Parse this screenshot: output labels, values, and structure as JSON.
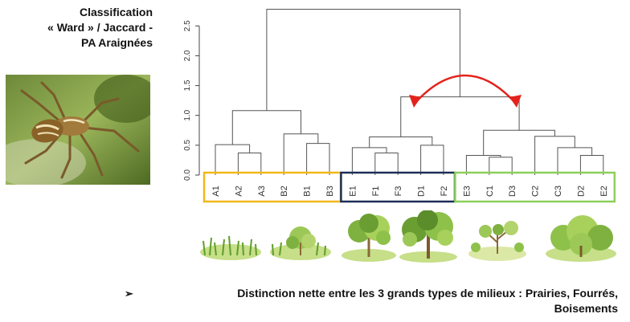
{
  "title": {
    "line1": "Classification",
    "line2": "« Ward » / Jaccard -",
    "line3": "PA Araignées"
  },
  "photo": {
    "alt": "spider-photo"
  },
  "chart_data": {
    "type": "dendrogram",
    "y_ticks": [
      "0.0",
      "0.5",
      "1.0",
      "1.5",
      "2.0",
      "2.5"
    ],
    "ylim": [
      0,
      2.8
    ],
    "leaves": [
      "A1",
      "A2",
      "A3",
      "B2",
      "B1",
      "B3",
      "E1",
      "F1",
      "F3",
      "D1",
      "F2",
      "E3",
      "C1",
      "D3",
      "C2",
      "C3",
      "D2",
      "E2"
    ],
    "merges": [
      {
        "left": "A2",
        "right": "A3",
        "height": 0.37
      },
      {
        "left": "A1",
        "right": "A2-A3",
        "height": 0.51
      },
      {
        "left": "B1",
        "right": "B3",
        "height": 0.53
      },
      {
        "left": "B2",
        "right": "B1-B3",
        "height": 0.69
      },
      {
        "left": "A-group",
        "right": "B-group",
        "height": 1.08
      },
      {
        "left": "F1",
        "right": "F3",
        "height": 0.37
      },
      {
        "left": "E1",
        "right": "F1-F3",
        "height": 0.46
      },
      {
        "left": "D1",
        "right": "F2",
        "height": 0.5
      },
      {
        "left": "E1-F",
        "right": "D1-F2",
        "height": 0.64
      },
      {
        "left": "C1",
        "right": "D3",
        "height": 0.3
      },
      {
        "left": "E3",
        "right": "C1-D3",
        "height": 0.33
      },
      {
        "left": "D2",
        "right": "E2",
        "height": 0.33
      },
      {
        "left": "C3",
        "right": "D2-E2",
        "height": 0.46
      },
      {
        "left": "C2",
        "right": "C3-group",
        "height": 0.65
      },
      {
        "left": "E3-group",
        "right": "C2-group",
        "height": 0.75
      },
      {
        "left": "mid",
        "right": "right",
        "height": 1.31
      },
      {
        "left": "A-B",
        "right": "rest",
        "height": 2.78
      }
    ],
    "groups": [
      {
        "leaves": [
          "A1",
          "A2",
          "A3",
          "B2",
          "B1",
          "B3"
        ],
        "color": "#f2b71a"
      },
      {
        "leaves": [
          "E1",
          "F1",
          "F3",
          "D1",
          "F2"
        ],
        "color": "#1d2e57"
      },
      {
        "leaves": [
          "E3",
          "C1",
          "D3",
          "C2",
          "C3",
          "D2",
          "E2"
        ],
        "color": "#8ccf5a"
      }
    ],
    "arrow_color": "#e3231b"
  },
  "illustrations": [
    "grass-icon",
    "grass-shrub-icon",
    "shrub-icon",
    "tree-icon",
    "sparse-shrub-icon",
    "bush-icon"
  ],
  "bullet": {
    "arrow": "➢",
    "line1": "Distinction nette entre les 3 grands types de milieux : Prairies, Fourrés,",
    "line2": "Boisements"
  }
}
